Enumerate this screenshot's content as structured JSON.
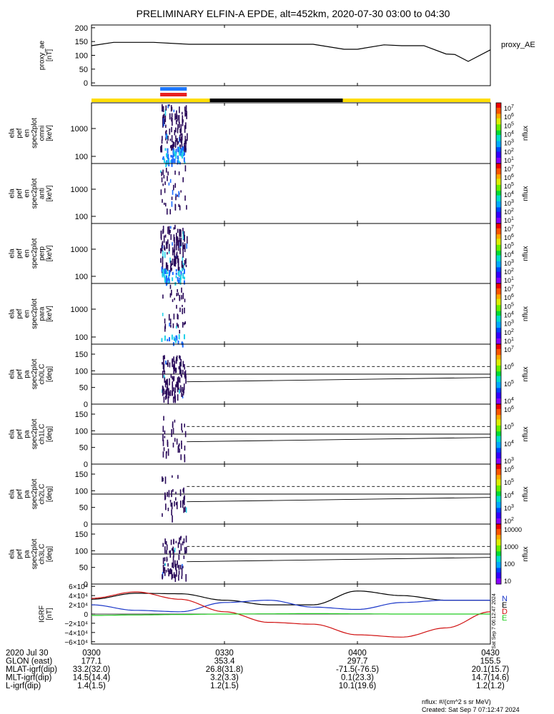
{
  "title": "PRELIMINARY ELFIN-A EPDE, alt=452km, 2020-07-30 03:00 to 04:30",
  "colors": {
    "axis": "#000000",
    "bar_yellow": "#ffdd00",
    "bar_black": "#000000",
    "bar_blue": "#1e78ff",
    "bar_red": "#e82020",
    "grf_black": "#000000",
    "grf_blue": "#1a36c8",
    "grf_red": "#d01010",
    "grf_green": "#22cc22",
    "spec_dark": "#2a0a5a",
    "spec_blue": "#1a6aff",
    "spec_cyan": "#20d0e8"
  },
  "chart_data": [
    {
      "type": "line",
      "name": "proxy_ae",
      "ylabel_lines": [
        "proxy_ae",
        "[nT]"
      ],
      "legend": "proxy_AE",
      "ylim": [
        -10,
        210
      ],
      "yticks": [
        "200",
        "150",
        "100",
        "50",
        "0"
      ],
      "ytick_values": [
        200,
        150,
        100,
        50,
        0
      ],
      "x_minutes": [
        0,
        2,
        6,
        12,
        24,
        36,
        60,
        66,
        72,
        78,
        84,
        90
      ],
      "x": [
        0,
        5,
        14,
        22,
        35,
        50,
        57,
        60,
        66,
        70,
        75,
        80,
        82,
        85,
        90
      ],
      "values": [
        135,
        147,
        147,
        140,
        140,
        140,
        122,
        122,
        138,
        135,
        135,
        105,
        103,
        78,
        120
      ]
    },
    {
      "type": "heatmap",
      "name": "en_omni",
      "ylabel_lines": [
        "ela",
        "pef",
        "en",
        "spec2plot",
        "omni",
        "[keV]"
      ],
      "yscale": "log",
      "yticks": [
        "1000",
        "100"
      ],
      "zlabel": "nflux",
      "zticks": [
        "10^7",
        "10^6",
        "10^5",
        "10^4",
        "10^3",
        "10^2",
        "10^1"
      ]
    },
    {
      "type": "heatmap",
      "name": "en_anti",
      "ylabel_lines": [
        "ela",
        "pef",
        "en",
        "spec2plot",
        "anti",
        "[keV]"
      ],
      "yscale": "log",
      "yticks": [
        "1000",
        "100"
      ],
      "zlabel": "nflux",
      "zticks": [
        "10^7",
        "10^6",
        "10^5",
        "10^4",
        "10^3",
        "10^2",
        "10^1"
      ]
    },
    {
      "type": "heatmap",
      "name": "en_perp",
      "ylabel_lines": [
        "ela",
        "pef",
        "en",
        "spec2plot",
        "perp",
        "[keV]"
      ],
      "yscale": "log",
      "yticks": [
        "1000",
        "100"
      ],
      "zlabel": "nflux",
      "zticks": [
        "10^7",
        "10^6",
        "10^5",
        "10^4",
        "10^3",
        "10^2",
        "10^1"
      ]
    },
    {
      "type": "heatmap",
      "name": "en_para",
      "ylabel_lines": [
        "ela",
        "pef",
        "en",
        "spec2plot",
        "para",
        "[keV]"
      ],
      "yscale": "log",
      "yticks": [
        "1000",
        "100"
      ],
      "zlabel": "nflux",
      "zticks": [
        "10^7",
        "10^6",
        "10^5",
        "10^4",
        "10^3",
        "10^2",
        "10^1"
      ]
    },
    {
      "type": "heatmap",
      "name": "pa_ch0",
      "ylabel_lines": [
        "ela",
        "pef",
        "pa",
        "spec2plot",
        "ch0LC",
        "[deg]"
      ],
      "ylim": [
        0,
        180
      ],
      "yticks": [
        "150",
        "100",
        "50",
        "0"
      ],
      "zlabel": "nflux",
      "zticks": [
        "10^7",
        "10^6",
        "10^5",
        "10^4"
      ]
    },
    {
      "type": "heatmap",
      "name": "pa_ch1",
      "ylabel_lines": [
        "ela",
        "pef",
        "pa",
        "spec2plot",
        "ch1LC",
        "[deg]"
      ],
      "ylim": [
        0,
        180
      ],
      "yticks": [
        "150",
        "100",
        "50",
        "0"
      ],
      "zlabel": "nflux",
      "zticks": [
        "10^6",
        "10^5",
        "10^4",
        "10^3"
      ]
    },
    {
      "type": "heatmap",
      "name": "pa_ch2",
      "ylabel_lines": [
        "ela",
        "pef",
        "pa",
        "spec2plot",
        "ch2LC",
        "[deg]"
      ],
      "ylim": [
        0,
        180
      ],
      "yticks": [
        "150",
        "100",
        "50",
        "0"
      ],
      "zlabel": "nflux",
      "zticks": [
        "10^6",
        "10^5",
        "10^4",
        "10^3",
        "10^2"
      ]
    },
    {
      "type": "heatmap",
      "name": "pa_ch3",
      "ylabel_lines": [
        "ela",
        "pef",
        "pa",
        "spec2plot",
        "ch3LC",
        "[deg]"
      ],
      "ylim": [
        0,
        180
      ],
      "yticks": [
        "150",
        "100",
        "50",
        "0"
      ],
      "zlabel": "nflux",
      "zticks": [
        "10000",
        "1000",
        "100",
        "10"
      ]
    },
    {
      "type": "line",
      "name": "igrf",
      "ylabel_lines": [
        "IGRF",
        "[nT]"
      ],
      "ylim": [
        -65000,
        65000
      ],
      "yticks": [
        "6×10⁴",
        "4×10⁴",
        "2×10⁴",
        "0",
        "−2×10⁴",
        "−4×10⁴",
        "−6×10⁴"
      ],
      "ytick_values": [
        60000,
        40000,
        20000,
        0,
        -20000,
        -40000,
        -60000
      ],
      "legend": [
        "N",
        "E",
        "D",
        "E"
      ],
      "x": [
        0,
        10,
        20,
        30,
        40,
        50,
        60,
        70,
        80,
        90
      ],
      "series": [
        {
          "values": [
            32000,
            45000,
            44000,
            30000,
            20000,
            20000,
            50000,
            40000,
            30000,
            30000
          ]
        },
        {
          "values": [
            20000,
            8000,
            5000,
            25000,
            30000,
            15000,
            10000,
            25000,
            30000,
            30000
          ]
        },
        {
          "values": [
            34000,
            48000,
            32000,
            5000,
            -18000,
            -22000,
            -45000,
            -50000,
            -30000,
            5000
          ]
        },
        {
          "values": [
            -3000,
            -2000,
            -1000,
            0,
            500,
            1000,
            500,
            0,
            0,
            0
          ]
        }
      ]
    }
  ],
  "time_axis": {
    "ticks": [
      "0300",
      "0330",
      "0400",
      "0430"
    ],
    "rows": [
      {
        "label": "2020 Jul 30",
        "values": [
          "0300",
          "0330",
          "0400",
          "0430"
        ]
      },
      {
        "label": "GLON (east)",
        "values": [
          "177.1",
          "353.4",
          "297.7",
          "155.5"
        ]
      },
      {
        "label": "MLAT-igrf(dip)",
        "values": [
          "33.2(32.0)",
          "26.8(31.8)",
          "-71.5(-76.5)",
          "20.1(15.7)"
        ]
      },
      {
        "label": "MLT-igrf(dip)",
        "values": [
          "14.5(14.4)",
          "3.2(3.3)",
          "0.1(23.3)",
          "14.7(14.6)"
        ]
      },
      {
        "label": "L-igrf(dip)",
        "values": [
          "1.4(1.5)",
          "1.2(1.5)",
          "10.1(19.6)",
          "1.2(1.2)"
        ]
      }
    ]
  },
  "footer": {
    "units": "nflux: #/(cm^2 s sr MeV)",
    "created": "Created: Sat Sep  7 07:12:47 2024",
    "side_stamp": "Sat Sep  7 06:12:47 2024"
  }
}
